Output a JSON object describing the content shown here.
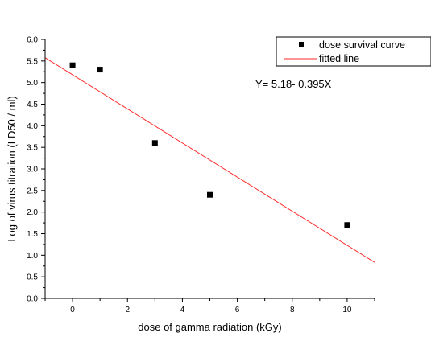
{
  "chart_data": {
    "type": "scatter",
    "xlabel": "dose of gamma radiation (kGy)",
    "ylabel": "Log of virus titration (LD50 / ml)",
    "xlim": [
      -1,
      11
    ],
    "ylim": [
      0.0,
      6.0
    ],
    "x_ticks": [
      0,
      2,
      4,
      6,
      8,
      10
    ],
    "y_ticks": [
      "0.0",
      "0.5",
      "1.0",
      "1.5",
      "2.0",
      "2.5",
      "3.0",
      "3.5",
      "4.0",
      "4.5",
      "5.0",
      "5.5",
      "6.0"
    ],
    "grid": false,
    "legend_position": "top-right",
    "series": [
      {
        "name": "dose survival curve",
        "kind": "scatter",
        "marker": "square",
        "color": "#000000",
        "x": [
          0,
          1,
          3,
          5,
          10
        ],
        "y": [
          5.4,
          5.3,
          3.6,
          2.4,
          1.7
        ]
      },
      {
        "name": "fitted line",
        "kind": "line",
        "color": "#ff2a2a",
        "intercept": 5.18,
        "slope": -0.395
      }
    ],
    "annotations": [
      {
        "text": "Y= 5.18- 0.395X"
      }
    ]
  }
}
